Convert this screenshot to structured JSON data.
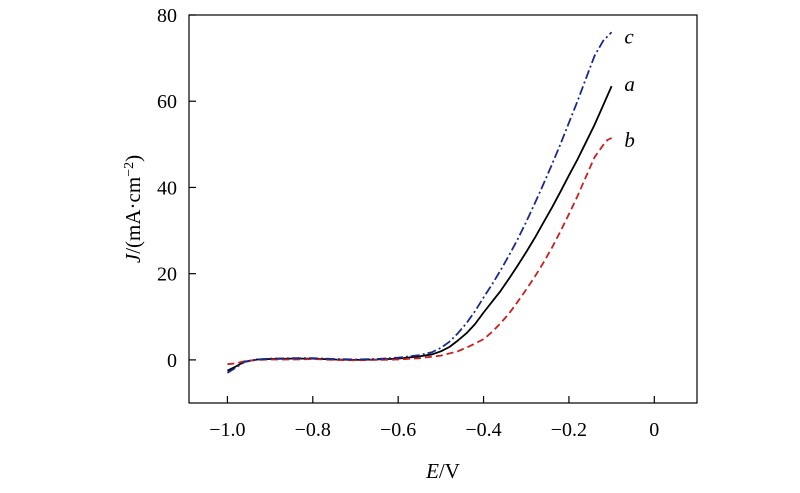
{
  "chart_data": {
    "type": "line",
    "title": "",
    "xlabel": {
      "symbol": "E",
      "unit": "/V"
    },
    "ylabel": {
      "symbol": "J",
      "unit": "/(mA·cm",
      "exp": "−2",
      "close": ")"
    },
    "xlim": [
      -1.09,
      0.1
    ],
    "ylim": [
      -10,
      80
    ],
    "xticks": [
      -1.0,
      -0.8,
      -0.6,
      -0.4,
      -0.2,
      0
    ],
    "xtick_labels": [
      "−1.0",
      "−0.8",
      "−0.6",
      "−0.4",
      "−0.2",
      "0"
    ],
    "yticks": [
      0,
      20,
      40,
      60,
      80
    ],
    "ytick_labels": [
      "0",
      "20",
      "40",
      "60",
      "80"
    ],
    "grid": false,
    "legend": "none",
    "series": [
      {
        "name": "a",
        "color": "#000000",
        "dash": "solid",
        "label_at": [
          -0.07,
          64
        ],
        "x": [
          -1.0,
          -0.98,
          -0.96,
          -0.93,
          -0.9,
          -0.85,
          -0.8,
          -0.75,
          -0.7,
          -0.65,
          -0.6,
          -0.55,
          -0.52,
          -0.5,
          -0.48,
          -0.46,
          -0.44,
          -0.42,
          -0.4,
          -0.38,
          -0.36,
          -0.34,
          -0.32,
          -0.3,
          -0.28,
          -0.26,
          -0.24,
          -0.22,
          -0.2,
          -0.18,
          -0.16,
          -0.14,
          -0.12,
          -0.1
        ],
        "y": [
          -2.5,
          -1.5,
          -0.4,
          0.1,
          0.2,
          0.3,
          0.3,
          0.1,
          0.0,
          0.1,
          0.3,
          0.8,
          1.3,
          2.0,
          3.0,
          4.5,
          6.2,
          8.3,
          11.0,
          13.5,
          16.0,
          18.9,
          21.9,
          25.0,
          28.3,
          31.8,
          35.3,
          39.0,
          42.8,
          46.5,
          50.5,
          54.5,
          59.0,
          63.5
        ]
      },
      {
        "name": "b",
        "color": "#cc1e1e",
        "dash": "dashed",
        "label_at": [
          -0.07,
          51
        ],
        "x": [
          -1.0,
          -0.98,
          -0.96,
          -0.93,
          -0.9,
          -0.85,
          -0.8,
          -0.75,
          -0.7,
          -0.65,
          -0.6,
          -0.55,
          -0.5,
          -0.46,
          -0.43,
          -0.4,
          -0.38,
          -0.36,
          -0.34,
          -0.32,
          -0.3,
          -0.28,
          -0.26,
          -0.24,
          -0.22,
          -0.2,
          -0.18,
          -0.16,
          -0.14,
          -0.12,
          -0.11,
          -0.1
        ],
        "y": [
          -1.0,
          -0.8,
          -0.3,
          0.0,
          0.1,
          0.1,
          0.2,
          0.0,
          -0.1,
          0.0,
          0.1,
          0.4,
          1.0,
          2.0,
          3.3,
          4.8,
          6.5,
          8.5,
          10.8,
          13.5,
          16.3,
          19.3,
          22.5,
          26.0,
          29.8,
          33.8,
          38.0,
          42.5,
          47.0,
          49.8,
          51.0,
          51.5
        ]
      },
      {
        "name": "c",
        "color": "#1a2a8c",
        "dash": "dashdot",
        "label_at": [
          -0.07,
          75
        ],
        "x": [
          -1.0,
          -0.98,
          -0.96,
          -0.93,
          -0.9,
          -0.85,
          -0.8,
          -0.75,
          -0.7,
          -0.65,
          -0.6,
          -0.55,
          -0.52,
          -0.5,
          -0.48,
          -0.46,
          -0.44,
          -0.42,
          -0.4,
          -0.38,
          -0.36,
          -0.34,
          -0.32,
          -0.3,
          -0.28,
          -0.26,
          -0.24,
          -0.22,
          -0.2,
          -0.18,
          -0.16,
          -0.14,
          -0.12,
          -0.1
        ],
        "y": [
          -3.0,
          -1.8,
          -0.5,
          0.1,
          0.3,
          0.4,
          0.4,
          0.2,
          0.1,
          0.2,
          0.5,
          1.1,
          1.8,
          2.8,
          4.2,
          6.2,
          8.5,
          11.3,
          14.5,
          17.5,
          20.8,
          24.3,
          28.0,
          32.0,
          36.3,
          40.7,
          45.3,
          50.0,
          55.0,
          60.0,
          65.3,
          70.5,
          74.0,
          76.0
        ]
      }
    ]
  }
}
